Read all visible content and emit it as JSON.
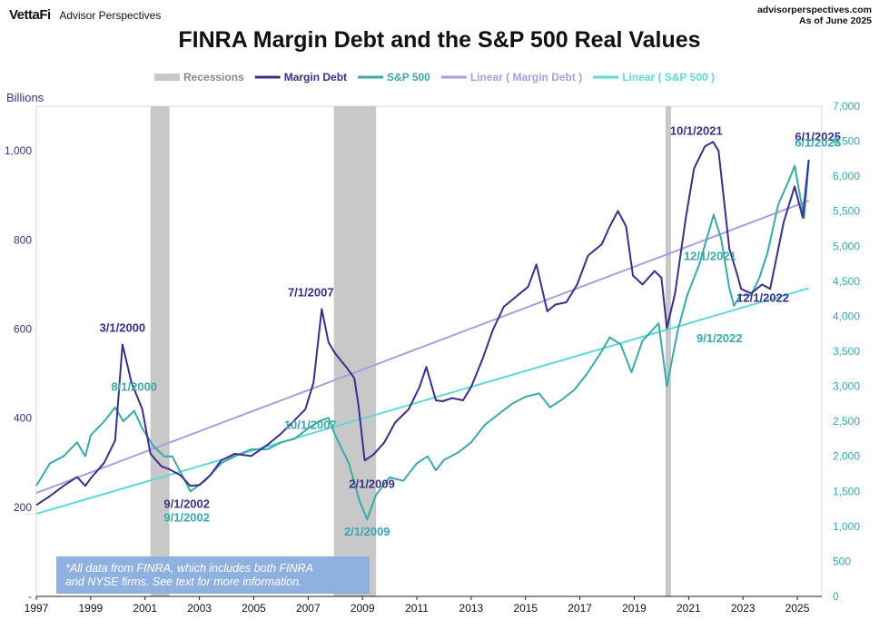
{
  "header": {
    "brand_logo": "VettaFi",
    "brand_sub": "Advisor Perspectives",
    "site": "advisorperspectives.com",
    "as_of": "As of June 2025"
  },
  "colors": {
    "recession": "#c8c8c8",
    "margin_debt": "#3b2f8a",
    "sp500": "#3aa9a9",
    "linear_margin": "#a99ee0",
    "linear_sp": "#5fd8d8",
    "left_axis": "#3b2f8a",
    "right_axis": "#3aa9a9",
    "note_bg": "#8fb1e0"
  },
  "chart_data": {
    "type": "line",
    "title": "FINRA Margin Debt and the S&P 500 Real Values",
    "ylabel_left": "Billions",
    "legend": [
      "Recessions",
      "Margin Debt",
      "S&P 500",
      "Linear ( Margin Debt )",
      "Linear ( S&P 500 )"
    ],
    "legend_position": "top",
    "x_range": [
      1997,
      2025.9
    ],
    "x_ticks": [
      "1997",
      "1999",
      "2001",
      "2003",
      "2005",
      "2007",
      "2009",
      "2011",
      "2013",
      "2015",
      "2017",
      "2019",
      "2021",
      "2023",
      "2025"
    ],
    "y_left_range": [
      0,
      1100
    ],
    "y_left_ticks": [
      "-",
      "200",
      "400",
      "600",
      "800",
      "1,000"
    ],
    "y_right_range": [
      0,
      7000
    ],
    "y_right_ticks": [
      "0",
      "500",
      "1,000",
      "1,500",
      "2,000",
      "2,500",
      "3,000",
      "3,500",
      "4,000",
      "4,500",
      "5,000",
      "5,500",
      "6,000",
      "6,500",
      "7,000"
    ],
    "recessions": [
      [
        2001.2,
        2001.9
      ],
      [
        2007.95,
        2009.5
      ],
      [
        2020.15,
        2020.35
      ]
    ],
    "series": [
      {
        "name": "Margin Debt",
        "axis": "left",
        "points": [
          [
            1997.0,
            205
          ],
          [
            1997.5,
            225
          ],
          [
            1998.0,
            248
          ],
          [
            1998.5,
            268
          ],
          [
            1998.8,
            248
          ],
          [
            1999.0,
            265
          ],
          [
            1999.5,
            300
          ],
          [
            1999.9,
            350
          ],
          [
            2000.17,
            565
          ],
          [
            2000.5,
            480
          ],
          [
            2000.9,
            420
          ],
          [
            2001.2,
            320
          ],
          [
            2001.6,
            292
          ],
          [
            2001.9,
            285
          ],
          [
            2002.3,
            272
          ],
          [
            2002.67,
            248
          ],
          [
            2003.0,
            250
          ],
          [
            2003.4,
            272
          ],
          [
            2003.8,
            305
          ],
          [
            2004.3,
            320
          ],
          [
            2004.9,
            315
          ],
          [
            2005.5,
            340
          ],
          [
            2006.0,
            365
          ],
          [
            2006.5,
            395
          ],
          [
            2006.9,
            420
          ],
          [
            2007.2,
            480
          ],
          [
            2007.5,
            645
          ],
          [
            2007.75,
            570
          ],
          [
            2008.0,
            545
          ],
          [
            2008.4,
            515
          ],
          [
            2008.7,
            490
          ],
          [
            2008.85,
            430
          ],
          [
            2009.08,
            305
          ],
          [
            2009.4,
            318
          ],
          [
            2009.8,
            345
          ],
          [
            2010.2,
            390
          ],
          [
            2010.7,
            420
          ],
          [
            2011.1,
            470
          ],
          [
            2011.35,
            515
          ],
          [
            2011.7,
            440
          ],
          [
            2011.95,
            438
          ],
          [
            2012.3,
            445
          ],
          [
            2012.7,
            440
          ],
          [
            2013.0,
            470
          ],
          [
            2013.4,
            530
          ],
          [
            2013.8,
            598
          ],
          [
            2014.2,
            650
          ],
          [
            2014.8,
            680
          ],
          [
            2015.1,
            695
          ],
          [
            2015.4,
            745
          ],
          [
            2015.8,
            640
          ],
          [
            2016.1,
            655
          ],
          [
            2016.5,
            660
          ],
          [
            2016.9,
            700
          ],
          [
            2017.3,
            765
          ],
          [
            2017.8,
            790
          ],
          [
            2018.1,
            830
          ],
          [
            2018.4,
            865
          ],
          [
            2018.7,
            830
          ],
          [
            2018.95,
            720
          ],
          [
            2019.3,
            700
          ],
          [
            2019.75,
            730
          ],
          [
            2020.0,
            715
          ],
          [
            2020.2,
            602
          ],
          [
            2020.5,
            680
          ],
          [
            2020.9,
            850
          ],
          [
            2021.2,
            960
          ],
          [
            2021.6,
            1010
          ],
          [
            2021.9,
            1020
          ],
          [
            2022.1,
            1000
          ],
          [
            2022.5,
            780
          ],
          [
            2022.8,
            720
          ],
          [
            2022.93,
            690
          ],
          [
            2023.3,
            680
          ],
          [
            2023.7,
            700
          ],
          [
            2024.0,
            690
          ],
          [
            2024.5,
            840
          ],
          [
            2024.9,
            920
          ],
          [
            2025.2,
            850
          ],
          [
            2025.42,
            980
          ]
        ]
      },
      {
        "name": "S&P 500",
        "axis": "right",
        "points": [
          [
            1997.0,
            1580
          ],
          [
            1997.5,
            1900
          ],
          [
            1998.0,
            2000
          ],
          [
            1998.5,
            2200
          ],
          [
            1998.8,
            2000
          ],
          [
            1999.0,
            2300
          ],
          [
            1999.5,
            2500
          ],
          [
            1999.9,
            2700
          ],
          [
            2000.2,
            2500
          ],
          [
            2000.6,
            2650
          ],
          [
            2000.9,
            2400
          ],
          [
            2001.3,
            2150
          ],
          [
            2001.7,
            2000
          ],
          [
            2002.0,
            2000
          ],
          [
            2002.67,
            1500
          ],
          [
            2003.2,
            1650
          ],
          [
            2003.8,
            1900
          ],
          [
            2004.3,
            2000
          ],
          [
            2004.9,
            2100
          ],
          [
            2005.5,
            2100
          ],
          [
            2006.0,
            2200
          ],
          [
            2006.5,
            2250
          ],
          [
            2007.0,
            2400
          ],
          [
            2007.4,
            2500
          ],
          [
            2007.75,
            2550
          ],
          [
            2008.0,
            2300
          ],
          [
            2008.5,
            1900
          ],
          [
            2008.9,
            1350
          ],
          [
            2009.17,
            1100
          ],
          [
            2009.5,
            1450
          ],
          [
            2010.0,
            1700
          ],
          [
            2010.5,
            1650
          ],
          [
            2011.0,
            1900
          ],
          [
            2011.4,
            2000
          ],
          [
            2011.7,
            1800
          ],
          [
            2012.0,
            1950
          ],
          [
            2012.5,
            2050
          ],
          [
            2013.0,
            2200
          ],
          [
            2013.5,
            2450
          ],
          [
            2014.0,
            2600
          ],
          [
            2014.5,
            2750
          ],
          [
            2015.0,
            2850
          ],
          [
            2015.5,
            2900
          ],
          [
            2015.9,
            2700
          ],
          [
            2016.3,
            2800
          ],
          [
            2016.8,
            2950
          ],
          [
            2017.3,
            3200
          ],
          [
            2017.8,
            3500
          ],
          [
            2018.1,
            3700
          ],
          [
            2018.5,
            3600
          ],
          [
            2018.9,
            3200
          ],
          [
            2019.3,
            3650
          ],
          [
            2019.9,
            3900
          ],
          [
            2020.2,
            3000
          ],
          [
            2020.6,
            3800
          ],
          [
            2020.95,
            4300
          ],
          [
            2021.4,
            4750
          ],
          [
            2021.92,
            5450
          ],
          [
            2022.2,
            5100
          ],
          [
            2022.5,
            4400
          ],
          [
            2022.67,
            4150
          ],
          [
            2022.9,
            4300
          ],
          [
            2023.3,
            4300
          ],
          [
            2023.6,
            4550
          ],
          [
            2023.9,
            4900
          ],
          [
            2024.3,
            5600
          ],
          [
            2024.7,
            5950
          ],
          [
            2024.9,
            6150
          ],
          [
            2025.25,
            5400
          ],
          [
            2025.42,
            6200
          ]
        ]
      }
    ],
    "trendlines": [
      {
        "name": "Linear ( Margin Debt )",
        "axis": "left",
        "x": [
          1997.0,
          2025.42
        ],
        "y": [
          232,
          888
        ]
      },
      {
        "name": "Linear ( S&P 500 )",
        "axis": "right",
        "x": [
          1997.0,
          2025.42
        ],
        "y": [
          1180,
          4400
        ]
      }
    ],
    "annotations": [
      {
        "text": "3/1/2000",
        "series": "Margin Debt",
        "x": 2000.17,
        "y": 565
      },
      {
        "text": "8/1/2000",
        "series": "S&P 500",
        "x": 2000.6,
        "y": 2650
      },
      {
        "text": "9/1/2002",
        "series": "Margin Debt",
        "x": 2002.67,
        "y": 248
      },
      {
        "text": "9/1/2002",
        "series": "S&P 500",
        "x": 2002.67,
        "y": 1500
      },
      {
        "text": "7/1/2007",
        "series": "Margin Debt",
        "x": 2007.5,
        "y": 645
      },
      {
        "text": "10/1/2007",
        "series": "S&P 500",
        "x": 2007.75,
        "y": 2550
      },
      {
        "text": "2/1/2009",
        "series": "Margin Debt",
        "x": 2009.08,
        "y": 305
      },
      {
        "text": "2/1/2009",
        "series": "S&P 500",
        "x": 2009.17,
        "y": 1100
      },
      {
        "text": "10/1/2021",
        "series": "Margin Debt",
        "x": 2021.75,
        "y": 1020
      },
      {
        "text": "12/1/2021",
        "series": "S&P 500",
        "x": 2021.92,
        "y": 5450
      },
      {
        "text": "9/1/2022",
        "series": "S&P 500",
        "x": 2022.67,
        "y": 4150
      },
      {
        "text": "12/1/2022",
        "series": "Margin Debt",
        "x": 2022.93,
        "y": 690
      },
      {
        "text": "6/1/2025",
        "series": "Margin Debt",
        "x": 2025.42,
        "y": 980
      },
      {
        "text": "6/1/2025",
        "series": "S&P 500",
        "x": 2025.42,
        "y": 6200
      }
    ],
    "note": [
      "*All data from FINRA, which includes both FINRA",
      "and NYSE firms. See text for more information."
    ]
  }
}
